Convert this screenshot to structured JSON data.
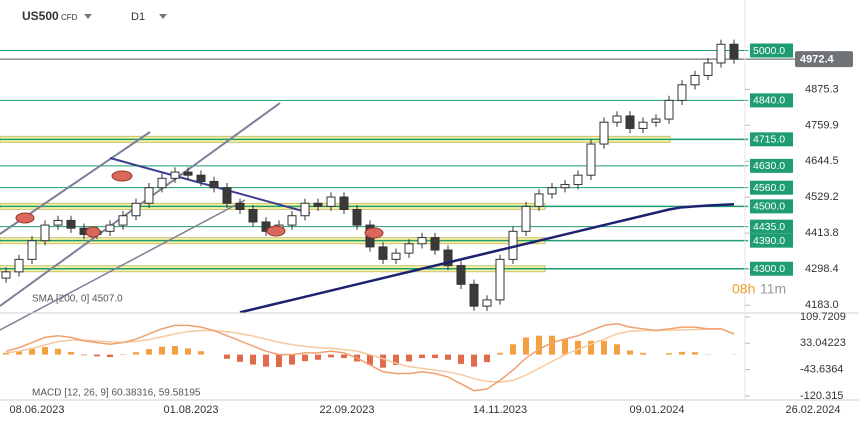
{
  "header": {
    "symbol": "US500",
    "kind": "CFD",
    "timeframe": "D1"
  },
  "chart_data": [
    {
      "type": "candlestick",
      "open": [
        4270,
        4290,
        4330,
        4390,
        4440,
        4455,
        4430,
        4410,
        4420,
        4440,
        4470,
        4510,
        4560,
        4590,
        4610,
        4600,
        4580,
        4560,
        4510,
        4490,
        4450,
        4420,
        4440,
        4470,
        4510,
        4500,
        4530,
        4490,
        4440,
        4370,
        4330,
        4350,
        4380,
        4400,
        4360,
        4310,
        4250,
        4180,
        4200,
        4330,
        4420,
        4500,
        4540,
        4560,
        4570,
        4600,
        4700,
        4770,
        4790,
        4750,
        4770,
        4780,
        4840,
        4890,
        4920,
        4960,
        5020
      ],
      "high": [
        4305,
        4345,
        4405,
        4455,
        4470,
        4470,
        4445,
        4435,
        4455,
        4485,
        4525,
        4575,
        4605,
        4625,
        4625,
        4615,
        4595,
        4575,
        4525,
        4505,
        4465,
        4455,
        4485,
        4525,
        4525,
        4545,
        4545,
        4505,
        4455,
        4385,
        4365,
        4395,
        4415,
        4415,
        4375,
        4325,
        4265,
        4215,
        4345,
        4435,
        4515,
        4555,
        4575,
        4585,
        4615,
        4715,
        4785,
        4805,
        4805,
        4785,
        4795,
        4855,
        4905,
        4935,
        4975,
        5035,
        5035
      ],
      "low": [
        4255,
        4275,
        4315,
        4375,
        4425,
        4415,
        4395,
        4395,
        4405,
        4425,
        4455,
        4495,
        4545,
        4575,
        4585,
        4565,
        4545,
        4495,
        4475,
        4435,
        4405,
        4405,
        4425,
        4455,
        4485,
        4485,
        4475,
        4425,
        4355,
        4315,
        4315,
        4335,
        4365,
        4345,
        4295,
        4235,
        4165,
        4165,
        4185,
        4315,
        4405,
        4485,
        4525,
        4545,
        4555,
        4585,
        4685,
        4755,
        4735,
        4735,
        4755,
        4765,
        4825,
        4875,
        4905,
        4945,
        4957.4
      ],
      "close": [
        4290,
        4330,
        4390,
        4440,
        4455,
        4430,
        4410,
        4420,
        4440,
        4470,
        4510,
        4560,
        4590,
        4610,
        4600,
        4580,
        4560,
        4510,
        4490,
        4450,
        4420,
        4440,
        4470,
        4510,
        4500,
        4530,
        4490,
        4440,
        4370,
        4330,
        4350,
        4380,
        4400,
        4360,
        4310,
        4250,
        4180,
        4200,
        4330,
        4420,
        4500,
        4540,
        4560,
        4570,
        4600,
        4700,
        4770,
        4790,
        4750,
        4770,
        4780,
        4840,
        4890,
        4920,
        4960,
        5020,
        4972.4
      ],
      "up_color": "#ffffff",
      "down_color": "#3a3a3a",
      "wick_color": "#333333",
      "ylim": [
        4158,
        5162
      ],
      "yticks": [
        4875.3,
        4759.9,
        4644.5,
        4529.2,
        4413.8,
        4298.4,
        {
          "value": 4183,
          "label": "4183.0"
        }
      ],
      "levels": [
        {
          "value": 5000,
          "label": "5000.0",
          "zone": false
        },
        {
          "value": 4840,
          "label": "4840.0",
          "zone": false
        },
        {
          "value": 4715,
          "label": "4715.0",
          "zone": true
        },
        {
          "value": 4630,
          "label": "4630.0",
          "zone": false
        },
        {
          "value": 4560,
          "label": "4560.0",
          "zone": false
        },
        {
          "value": 4500,
          "label": "4500.0",
          "zone": true
        },
        {
          "value": 4435,
          "label": "4435.0",
          "zone": false
        },
        {
          "value": 4390,
          "label": "4390.0",
          "zone": true
        },
        {
          "value": 4300,
          "label": "4300.0",
          "zone": true
        }
      ],
      "level_color": "#1e9e70",
      "zone_color": "#fbf3a8",
      "current_price": {
        "value": 4972.4,
        "label": "4972.4",
        "color": "#6f7378"
      },
      "sma": {
        "label": "SMA [200, 0] 4507.0",
        "color": "#1c2270",
        "values": [
          null,
          null,
          null,
          null,
          null,
          null,
          null,
          null,
          null,
          null,
          null,
          null,
          null,
          null,
          null,
          null,
          null,
          null,
          4160,
          4170,
          4180,
          4190,
          4200,
          4210,
          4220,
          4230,
          4240,
          4250,
          4260,
          4270,
          4280,
          4290,
          4300,
          4310,
          4320,
          4330,
          4340,
          4350,
          4360,
          4370,
          4380,
          4390,
          4400,
          4410,
          4420,
          4430,
          4440,
          4450,
          4460,
          4470,
          4480,
          4490,
          4497,
          4500,
          4503,
          4505,
          4507
        ]
      },
      "x_labels": [
        "08.06.2023",
        "01.08.2023",
        "22.09.2023",
        "14.11.2023",
        "09.01.2024",
        "26.02.2024"
      ],
      "timer": {
        "hours": "08h",
        "minutes": "11m"
      }
    },
    {
      "type": "macd",
      "label": "MACD [12, 26, 9] 60.38316, 59.58195",
      "ylim": [
        -132,
        121
      ],
      "yticks": [
        109.7209,
        33.04223,
        -43.6364,
        -120.315
      ],
      "macd": {
        "color": "#f0a070",
        "values": [
          10,
          20,
          35,
          50,
          55,
          50,
          40,
          35,
          30,
          35,
          45,
          60,
          75,
          85,
          85,
          80,
          70,
          55,
          40,
          25,
          10,
          0,
          0,
          5,
          5,
          10,
          5,
          -10,
          -30,
          -50,
          -55,
          -55,
          -50,
          -55,
          -65,
          -85,
          -105,
          -100,
          -75,
          -45,
          -10,
          15,
          35,
          45,
          55,
          70,
          85,
          90,
          80,
          75,
          70,
          75,
          80,
          80,
          75,
          75,
          60.38316
        ]
      },
      "signal": {
        "color": "#f5c9a0",
        "values": [
          5,
          10,
          18,
          28,
          38,
          42,
          42,
          40,
          37,
          36,
          38,
          44,
          52,
          60,
          67,
          70,
          70,
          67,
          61,
          54,
          45,
          36,
          29,
          24,
          20,
          18,
          15,
          10,
          0,
          -12,
          -25,
          -35,
          -40,
          -45,
          -50,
          -58,
          -70,
          -78,
          -80,
          -75,
          -60,
          -40,
          -20,
          0,
          15,
          30,
          45,
          60,
          68,
          70,
          70,
          71,
          72,
          73,
          74,
          75,
          59.58195
        ]
      },
      "histogram": {
        "up_color": "#f5a040",
        "down_color": "#e06a4a",
        "values": [
          5,
          10,
          17,
          22,
          17,
          8,
          -2,
          -5,
          -7,
          -1,
          7,
          16,
          23,
          25,
          18,
          10,
          0,
          -12,
          -21,
          -29,
          -35,
          -36,
          -29,
          -19,
          -15,
          -8,
          -10,
          -20,
          -30,
          -38,
          -30,
          -20,
          -10,
          -10,
          -15,
          -27,
          -35,
          -22,
          5,
          30,
          50,
          55,
          55,
          45,
          40,
          40,
          40,
          30,
          12,
          5,
          0,
          4,
          8,
          7,
          1,
          0,
          0.8
        ]
      }
    }
  ]
}
